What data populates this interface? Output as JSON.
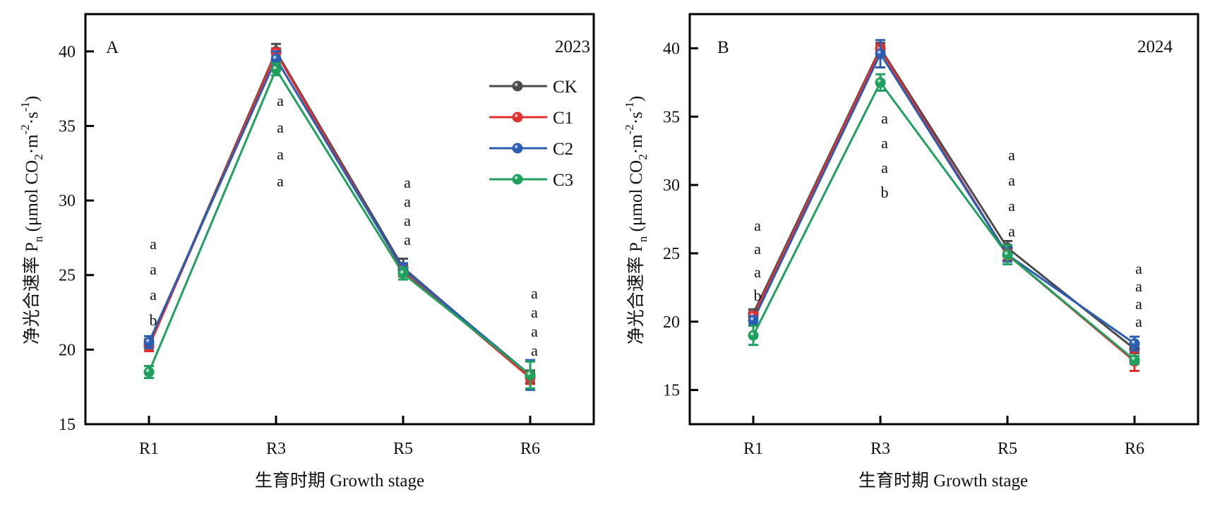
{
  "chart_data": [
    {
      "type": "line",
      "panel_label": "A",
      "year": "2023",
      "xlabel": "生育时期 Growth stage",
      "ylabel_main": "净光合速率 P",
      "ylabel_sub": "n",
      "ylabel_unit_pre": " (μmol CO",
      "ylabel_unit_co2_sub": "2",
      "ylabel_unit_mid": "·m",
      "ylabel_unit_m_sup": "-2",
      "ylabel_unit_s": "·s",
      "ylabel_unit_s_sup": "-1",
      "ylabel_unit_close": ")",
      "categories": [
        "R1",
        "R3",
        "R5",
        "R6"
      ],
      "ylim": [
        15,
        42.5
      ],
      "yticks": [
        15,
        20,
        25,
        30,
        35,
        40
      ],
      "grid": false,
      "legend_position": "top-right",
      "series": [
        {
          "name": "CK",
          "color": "#4a4a4a",
          "values": [
            20.3,
            40.0,
            25.5,
            18.2
          ],
          "errors": [
            0.4,
            0.5,
            0.6,
            0.4
          ]
        },
        {
          "name": "C1",
          "color": "#e03131",
          "values": [
            20.2,
            39.9,
            25.3,
            18.1
          ],
          "errors": [
            0.3,
            0.3,
            0.4,
            0.4
          ]
        },
        {
          "name": "C2",
          "color": "#2b5db3",
          "values": [
            20.5,
            39.5,
            25.4,
            18.3
          ],
          "errors": [
            0.4,
            0.5,
            0.4,
            1.0
          ]
        },
        {
          "name": "C3",
          "color": "#20a05e",
          "values": [
            18.5,
            38.8,
            25.1,
            18.3
          ],
          "errors": [
            0.4,
            0.4,
            0.4,
            0.9
          ]
        }
      ],
      "significance": [
        [
          "a",
          "a",
          "a",
          "b"
        ],
        [
          "a",
          "a",
          "a",
          "a"
        ],
        [
          "a",
          "a",
          "a",
          "a"
        ],
        [
          "a",
          "a",
          "a",
          "a"
        ]
      ]
    },
    {
      "type": "line",
      "panel_label": "B",
      "year": "2024",
      "xlabel": "生育时期 Growth stage",
      "ylabel_main": "净光合速率 P",
      "ylabel_sub": "n",
      "ylabel_unit_pre": " (μmol CO",
      "ylabel_unit_co2_sub": "2",
      "ylabel_unit_mid": "·m",
      "ylabel_unit_m_sup": "-2",
      "ylabel_unit_s": "·s",
      "ylabel_unit_s_sup": "-1",
      "ylabel_unit_close": ")",
      "categories": [
        "R1",
        "R3",
        "R5",
        "R6"
      ],
      "ylim": [
        12.5,
        42.5
      ],
      "yticks": [
        15,
        20,
        25,
        30,
        35,
        40
      ],
      "grid": false,
      "legend_position": "none",
      "series": [
        {
          "name": "CK",
          "color": "#4a4a4a",
          "values": [
            20.6,
            40.0,
            25.4,
            18.0
          ],
          "errors": [
            0.3,
            0.4,
            0.5,
            0.3
          ]
        },
        {
          "name": "C1",
          "color": "#e03131",
          "values": [
            20.4,
            39.9,
            24.9,
            17.1
          ],
          "errors": [
            0.3,
            0.4,
            0.4,
            0.7
          ]
        },
        {
          "name": "C2",
          "color": "#2b5db3",
          "values": [
            20.1,
            39.6,
            24.9,
            18.4
          ],
          "errors": [
            0.3,
            1.0,
            0.5,
            0.5
          ]
        },
        {
          "name": "C3",
          "color": "#20a05e",
          "values": [
            19.0,
            37.5,
            24.9,
            17.2
          ],
          "errors": [
            0.7,
            0.6,
            0.7,
            0.3
          ]
        }
      ],
      "significance": [
        [
          "a",
          "a",
          "a",
          "b"
        ],
        [
          "a",
          "a",
          "a",
          "b"
        ],
        [
          "a",
          "a",
          "a",
          "a"
        ],
        [
          "a",
          "a",
          "a",
          "a"
        ]
      ]
    }
  ]
}
